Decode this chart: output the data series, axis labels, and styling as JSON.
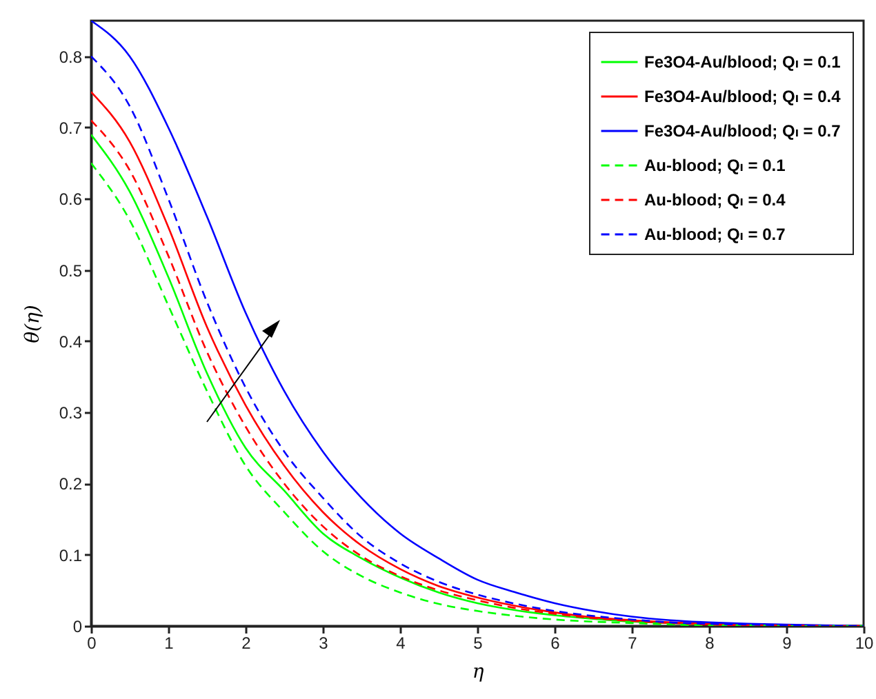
{
  "chart_data": {
    "type": "line",
    "xlabel": "η",
    "ylabel": "θ(η)",
    "x": [
      0,
      0.5,
      1,
      1.5,
      2,
      2.5,
      3,
      3.5,
      4,
      4.5,
      5,
      5.5,
      6,
      6.5,
      7,
      7.5,
      8,
      8.5,
      9,
      9.5,
      10
    ],
    "xlim": [
      0,
      10
    ],
    "xticks": [
      0,
      1,
      2,
      3,
      4,
      5,
      6,
      7,
      8,
      9,
      10
    ],
    "ylim": [
      0,
      0.85
    ],
    "yticks": [
      0,
      0.1,
      0.2,
      0.3,
      0.4,
      0.5,
      0.6,
      0.7,
      0.8
    ],
    "grid": false,
    "legend": "top right",
    "marker": "none",
    "series": [
      {
        "name": "Fe3O4-Au/blood; Qₗ = 0.1",
        "color": "#00ff00",
        "line_style": "solid",
        "values": [
          0.69,
          0.61,
          0.49,
          0.355,
          0.25,
          0.19,
          0.13,
          0.095,
          0.068,
          0.047,
          0.032,
          0.022,
          0.015,
          0.01,
          0.006,
          0.004,
          0.002,
          0.001,
          0.001,
          0,
          0
        ]
      },
      {
        "name": "Fe3O4-Au/blood; Qₗ = 0.4",
        "color": "#ff0000",
        "line_style": "solid",
        "values": [
          0.75,
          0.68,
          0.56,
          0.42,
          0.31,
          0.225,
          0.16,
          0.113,
          0.08,
          0.056,
          0.04,
          0.028,
          0.019,
          0.012,
          0.008,
          0.005,
          0.003,
          0.002,
          0.001,
          0,
          0
        ]
      },
      {
        "name": "Fe3O4-Au/blood; Qₗ = 0.7",
        "color": "#0000ff",
        "line_style": "solid",
        "values": [
          0.85,
          0.8,
          0.7,
          0.575,
          0.44,
          0.33,
          0.245,
          0.18,
          0.13,
          0.095,
          0.065,
          0.047,
          0.032,
          0.021,
          0.013,
          0.008,
          0.005,
          0.003,
          0.002,
          0.001,
          0
        ]
      },
      {
        "name": "Au-blood; Qₗ = 0.1",
        "color": "#00ff00",
        "line_style": "dashed",
        "values": [
          0.65,
          0.57,
          0.45,
          0.33,
          0.225,
          0.16,
          0.105,
          0.07,
          0.047,
          0.031,
          0.021,
          0.014,
          0.009,
          0.006,
          0.004,
          0.002,
          0.001,
          0.001,
          0,
          0,
          0
        ]
      },
      {
        "name": "Au-blood; Qₗ = 0.4",
        "color": "#ff0000",
        "line_style": "dashed",
        "values": [
          0.71,
          0.64,
          0.52,
          0.385,
          0.28,
          0.2,
          0.14,
          0.098,
          0.07,
          0.05,
          0.036,
          0.025,
          0.017,
          0.011,
          0.007,
          0.004,
          0.002,
          0.001,
          0.001,
          0,
          0
        ]
      },
      {
        "name": "Au-blood; Qₗ = 0.7",
        "color": "#0000ff",
        "line_style": "dashed",
        "values": [
          0.8,
          0.73,
          0.6,
          0.455,
          0.335,
          0.245,
          0.18,
          0.125,
          0.088,
          0.062,
          0.044,
          0.031,
          0.021,
          0.014,
          0.009,
          0.005,
          0.003,
          0.002,
          0.001,
          0,
          0
        ]
      }
    ]
  }
}
